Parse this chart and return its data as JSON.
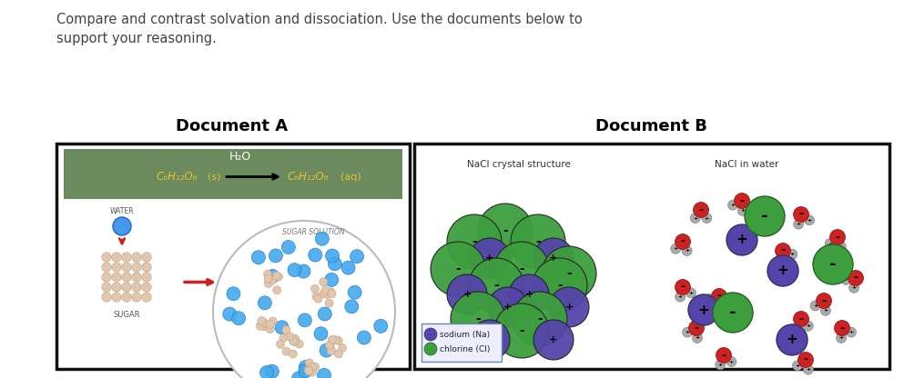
{
  "title_text": "Compare and contrast solvation and dissociation. Use the documents below to\nsupport your reasoning.",
  "doc_a_title": "Document A",
  "doc_b_title": "Document B",
  "doc_a_header_bg": "#6b8a5e",
  "doc_a_formula_color": "#e8c030",
  "doc_a_h2o": "H₂O",
  "doc_b_label1": "NaCl crystal structure",
  "doc_b_label2": "NaCl in water",
  "doc_b_na_label": "sodium (Na)",
  "doc_b_cl_label": "chlorine (Cl)",
  "nacl_green": "#3d9e3d",
  "nacl_purple": "#5544aa",
  "water_red": "#cc2222",
  "water_gray": "#999999",
  "bg_color": "#ffffff",
  "border_color": "#111111",
  "title_fontsize": 10.5,
  "doc_title_fontsize": 13
}
